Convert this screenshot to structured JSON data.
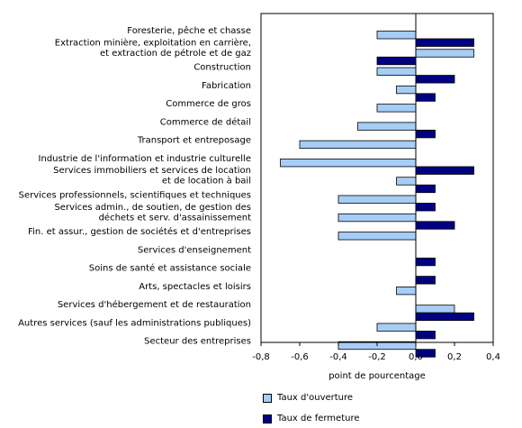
{
  "chart_data": {
    "type": "bar",
    "orientation": "horizontal",
    "categories": [
      "Foresterie, pêche et chasse",
      "Extraction minière, exploitation en carrière,\net extraction de pétrole et de gaz",
      "Construction",
      "Fabrication",
      "Commerce de gros",
      "Commerce de détail",
      "Transport et entreposage",
      "Industrie de l'information et industrie culturelle",
      "Services immobiliers et services de location\net de location à bail",
      "Services professionnels, scientifiques et techniques",
      "Services admin., de soutien, de gestion des\ndéchets et serv. d'assainissement",
      "Fin. et assur., gestion de sociétés et d'entreprises",
      "Services d'enseignement",
      "Soins de santé et assistance sociale",
      "Arts, spectacles et loisirs",
      "Services d'hébergement et de restauration",
      "Autres services (sauf les administrations publiques)",
      "Secteur des entreprises"
    ],
    "series": [
      {
        "name": "Taux d'ouverture",
        "color": "#a6cdf5",
        "values": [
          -0.2,
          0.3,
          -0.2,
          -0.1,
          -0.2,
          -0.3,
          -0.6,
          -0.7,
          -0.1,
          -0.4,
          -0.4,
          -0.4,
          0.0,
          0.0,
          -0.1,
          0.2,
          -0.2,
          -0.4
        ]
      },
      {
        "name": "Taux de fermeture",
        "color": "#000080",
        "values": [
          0.3,
          -0.2,
          0.2,
          0.1,
          0.0,
          0.1,
          0.0,
          0.3,
          0.1,
          0.1,
          0.2,
          0.0,
          0.1,
          0.1,
          0.0,
          0.3,
          0.1,
          0.1
        ]
      }
    ],
    "xlabel": "point de pourcentage",
    "xlim": [
      -0.8,
      0.4
    ],
    "xticks": [
      "-0,8",
      "-0,6",
      "-0,4",
      "-0,2",
      "0,0",
      "0,2",
      "0,4"
    ],
    "xtick_values": [
      -0.8,
      -0.6,
      -0.4,
      -0.2,
      0.0,
      0.2,
      0.4
    ],
    "grid": false,
    "legend_position": "bottom"
  }
}
